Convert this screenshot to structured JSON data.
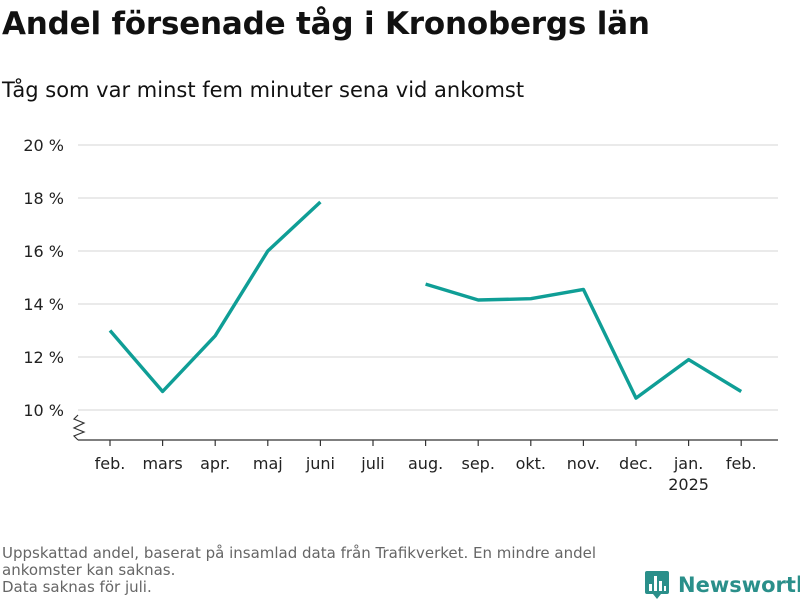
{
  "header": {
    "title": "Andel försenade tåg i Kronobergs län",
    "subtitle": "Tåg som var minst fem minuter sena vid ankomst"
  },
  "chart_data": {
    "type": "line",
    "title": "Andel försenade tåg i Kronobergs län",
    "subtitle": "Tåg som var minst fem minuter sena vid ankomst",
    "xlabel": "",
    "ylabel": "",
    "categories": [
      "feb.",
      "mars",
      "apr.",
      "maj",
      "juni",
      "juli",
      "aug.",
      "sep.",
      "okt.",
      "nov.",
      "dec.",
      "jan.",
      "feb."
    ],
    "category_sublabels": [
      "",
      "",
      "",
      "",
      "",
      "",
      "",
      "",
      "",
      "",
      "",
      "2025",
      ""
    ],
    "series": [
      {
        "values": [
          13.0,
          10.7,
          12.8,
          16.0,
          17.85,
          null,
          14.75,
          14.15,
          14.2,
          14.55,
          10.45,
          11.9,
          10.7
        ],
        "color": "#0f9e96"
      }
    ],
    "y_ticks": [
      10,
      12,
      14,
      16,
      18,
      20
    ],
    "y_tick_labels": [
      "10 %",
      "12 %",
      "14 %",
      "16 %",
      "18 %",
      "20 %"
    ],
    "ylim": [
      10,
      20
    ],
    "y_axis_break": true,
    "grid": true,
    "legend": "none"
  },
  "footer": {
    "note_lines": [
      "Uppskattad andel, baserat på insamlad data från Trafikverket. En mindre andel",
      "ankomster kan saknas.",
      "Data saknas för juli."
    ],
    "brand": "Newsworthy",
    "brand_color": "#2a8f8a",
    "brand_icon": "bar-chart-logo-icon"
  }
}
